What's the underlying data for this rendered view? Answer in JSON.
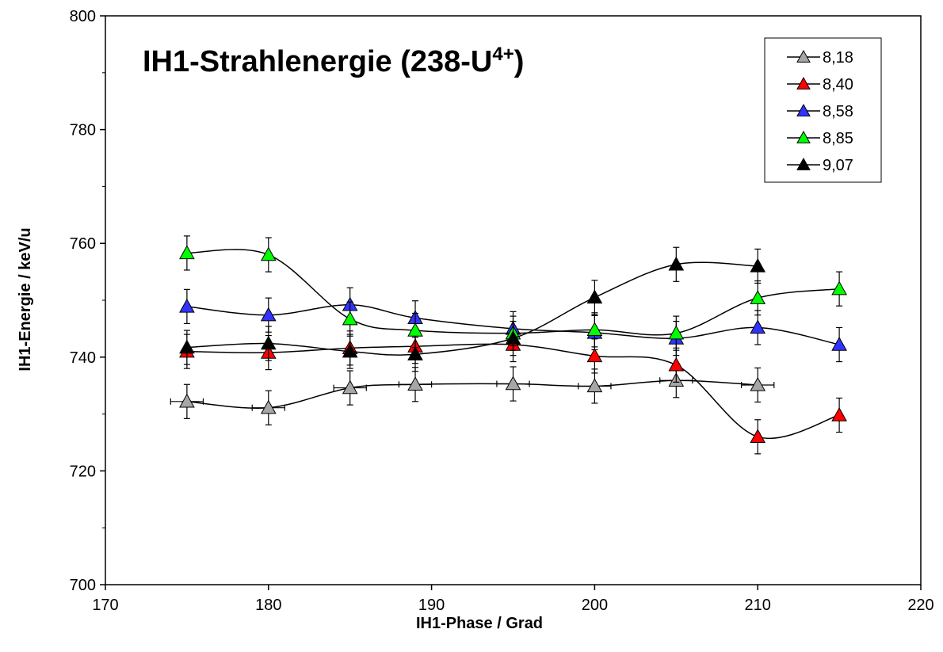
{
  "chart_data": {
    "type": "line",
    "title": "IH1-Strahlenergie (238-U",
    "title_superscript": "4+",
    "title_close": ")",
    "xlabel": "IH1-Phase / Grad",
    "ylabel": "IH1-Energie / keV/u",
    "xlim": [
      170,
      220
    ],
    "ylim": [
      700,
      800
    ],
    "xticks": [
      170,
      180,
      190,
      200,
      210,
      220
    ],
    "yticks": [
      700,
      720,
      740,
      760,
      780,
      800
    ],
    "grid": false,
    "legend_position": "top-right",
    "y_error": 3,
    "series": [
      {
        "name": "8,18",
        "color": "#a6a6a6",
        "marker": "triangle",
        "x": [
          175,
          180,
          185,
          189,
          195,
          200,
          205,
          210
        ],
        "y": [
          732.2,
          731.1,
          734.6,
          735.2,
          735.3,
          734.9,
          735.9,
          735.1
        ],
        "x_error": 1
      },
      {
        "name": "8,40",
        "color": "#ff0000",
        "marker": "triangle",
        "x": [
          175,
          180,
          185,
          189,
          195,
          200,
          205,
          210,
          215
        ],
        "y": [
          741.0,
          740.8,
          741.6,
          741.9,
          742.2,
          740.2,
          738.6,
          726.0,
          729.8
        ]
      },
      {
        "name": "8,58",
        "color": "#3333ff",
        "marker": "triangle",
        "x": [
          175,
          180,
          185,
          189,
          195,
          200,
          205,
          210,
          215
        ],
        "y": [
          748.9,
          747.4,
          749.2,
          746.9,
          745.0,
          744.3,
          743.3,
          745.2,
          742.2
        ]
      },
      {
        "name": "8,85",
        "color": "#00ff00",
        "marker": "triangle",
        "x": [
          175,
          180,
          185,
          189,
          195,
          200,
          205,
          210,
          215
        ],
        "y": [
          758.3,
          758.0,
          746.7,
          744.7,
          744.2,
          744.8,
          744.2,
          750.4,
          752.0
        ]
      },
      {
        "name": "9,07",
        "color": "#000000",
        "marker": "triangle",
        "x": [
          175,
          180,
          185,
          189,
          195,
          200,
          205,
          210
        ],
        "y": [
          741.7,
          742.4,
          741.0,
          740.5,
          743.3,
          750.5,
          756.3,
          756.0
        ]
      }
    ]
  }
}
